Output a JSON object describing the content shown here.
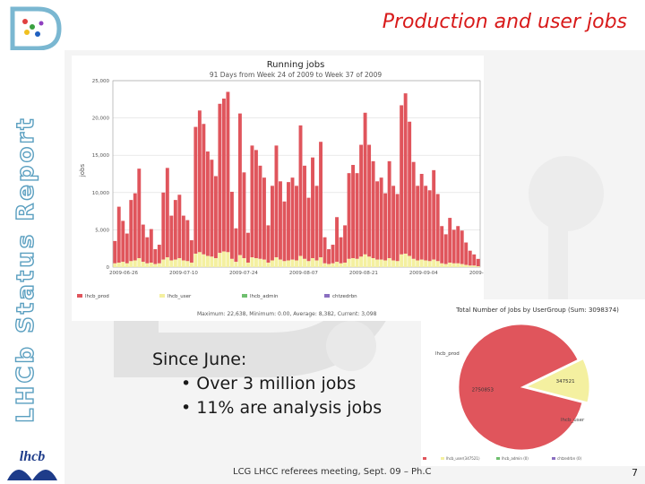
{
  "slide": {
    "title": "Production and user jobs",
    "sidebar_title": "LHCb Status Report",
    "footer": "LCG LHCC referees meeting, Sept. 09 – Ph.C",
    "page_number": "7",
    "logo_text": "lhcb",
    "bullets": {
      "heading": "Since June:",
      "items": [
        "• Over 3 million jobs",
        "• 11% are analysis jobs"
      ]
    }
  },
  "chart_data": [
    {
      "type": "bar",
      "title": "Running jobs",
      "subtitle": "91 Days from Week 24 of 2009 to Week 37 of 2009",
      "ylabel": "jobs",
      "ylim": [
        0,
        25000
      ],
      "yticks": [
        "0",
        "5,000",
        "10,000",
        "15,000",
        "20,000",
        "25,000"
      ],
      "xticks": [
        "2009-06-26",
        "2009-07-10",
        "2009-07-24",
        "2009-08-07",
        "2009-08-21",
        "2009-09-04",
        "2009-09-18"
      ],
      "grid": true,
      "legend_position": "bottom",
      "series": [
        {
          "name": "lhcb_prod",
          "color": "#e0555c",
          "values": [
            3000,
            7500,
            5500,
            4000,
            8200,
            9000,
            12000,
            5000,
            3500,
            4500,
            2000,
            2500,
            9000,
            12000,
            6000,
            8000,
            8500,
            6000,
            5500,
            3000,
            17000,
            19000,
            17500,
            14000,
            13000,
            11000,
            20000,
            20500,
            21500,
            9000,
            4500,
            19000,
            11500,
            4000,
            15000,
            14500,
            12500,
            11000,
            5000,
            10000,
            15000,
            10500,
            8000,
            10500,
            11000,
            10000,
            17500,
            12500,
            8500,
            13500,
            10000,
            15500,
            3500,
            2000,
            2500,
            6000,
            3500,
            5000,
            11500,
            12500,
            11500,
            15000,
            19000,
            15000,
            13000,
            10500,
            11000,
            9000,
            13000,
            10000,
            9000,
            20000,
            21500,
            18000,
            13000,
            10000,
            11500,
            10000,
            9500,
            12000,
            9000,
            5000,
            4000,
            6000,
            4500,
            5000,
            4500,
            3000,
            2000,
            1500,
            1000
          ]
        },
        {
          "name": "lhcb_user",
          "color": "#f4f0a0",
          "values": [
            500,
            600,
            700,
            500,
            800,
            900,
            1200,
            700,
            500,
            600,
            400,
            500,
            1000,
            1300,
            900,
            1000,
            1200,
            900,
            800,
            600,
            1800,
            2000,
            1700,
            1500,
            1400,
            1200,
            1900,
            2100,
            2000,
            1100,
            700,
            1600,
            1200,
            600,
            1300,
            1200,
            1100,
            1000,
            600,
            900,
            1300,
            1000,
            800,
            900,
            1000,
            900,
            1500,
            1100,
            800,
            1200,
            900,
            1300,
            500,
            400,
            500,
            700,
            500,
            600,
            1100,
            1200,
            1100,
            1400,
            1700,
            1400,
            1200,
            1000,
            1000,
            900,
            1200,
            900,
            800,
            1700,
            1800,
            1500,
            1100,
            900,
            1000,
            900,
            800,
            1000,
            800,
            500,
            400,
            600,
            500,
            500,
            400,
            300,
            200,
            200,
            100
          ]
        },
        {
          "name": "lhcb_admin",
          "color": "#6fbf6f",
          "values": []
        },
        {
          "name": "chtzedrbn",
          "color": "#8a6fc0",
          "values": []
        }
      ],
      "stats_line": "Maximum: 22,638, Minimum: 0.00, Average: 8,382, Current: 3,098"
    },
    {
      "type": "pie",
      "title": "Total Number of Jobs by UserGroup (Sum: 3098374)",
      "slices": [
        {
          "name": "lhcb_prod",
          "value": 2750853,
          "label": "2750853",
          "color": "#e0555c"
        },
        {
          "name": "lhcb_user",
          "value": 347521,
          "label": "347521",
          "color": "#f4f0a0"
        }
      ],
      "legend": [
        "lhcb_prod(2750853)",
        "lhcb_user(347521)",
        "lhcb_admin (0)",
        "chtzedrbn (0)"
      ]
    }
  ]
}
